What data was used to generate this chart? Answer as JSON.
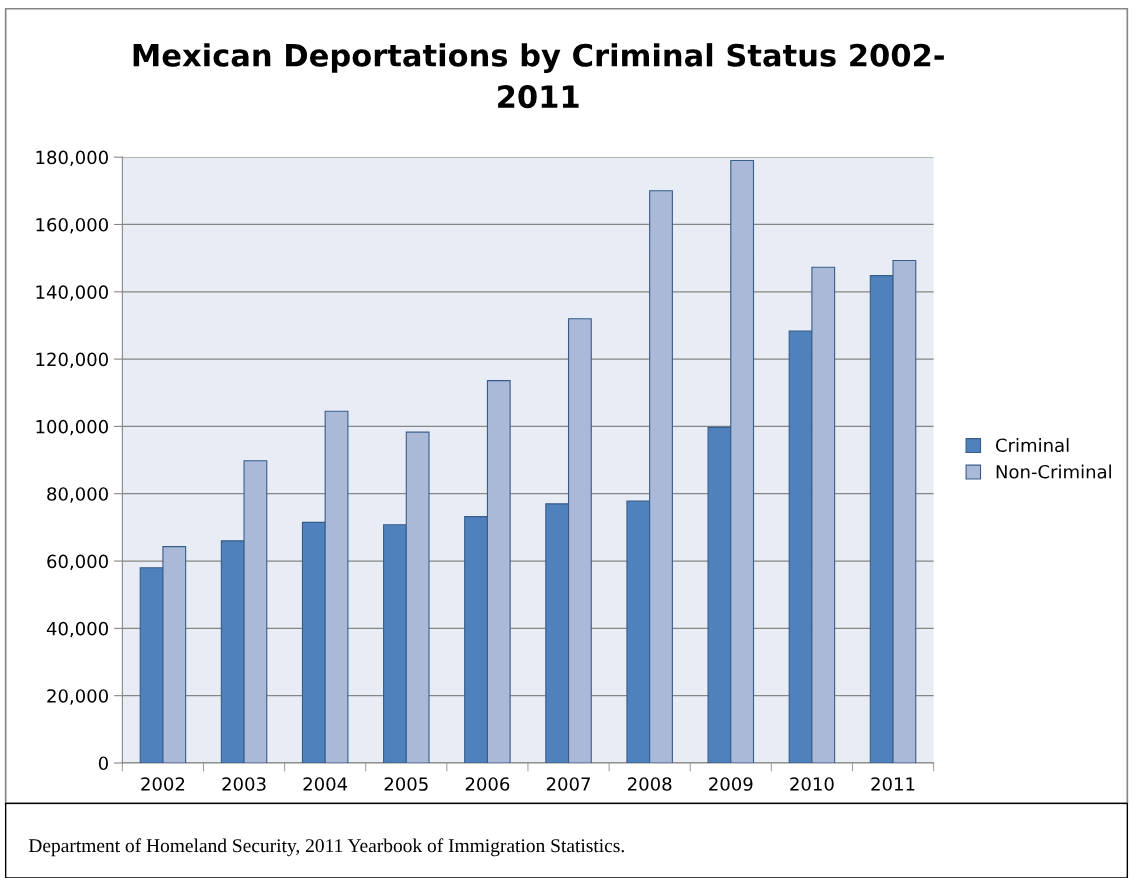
{
  "chart_data": {
    "type": "bar",
    "title": "Mexican Deportations by Criminal Status 2002-\n2011",
    "categories": [
      "2002",
      "2003",
      "2004",
      "2005",
      "2006",
      "2007",
      "2008",
      "2009",
      "2010",
      "2011"
    ],
    "series": [
      {
        "name": "Criminal",
        "color": "#4f81bd",
        "values": [
          58000,
          66000,
          71500,
          70800,
          73200,
          77000,
          77800,
          99700,
          128300,
          144800
        ]
      },
      {
        "name": "Non-Criminal",
        "color": "#aab9d8",
        "values": [
          64300,
          89800,
          104500,
          98300,
          113600,
          132000,
          170000,
          179000,
          147300,
          149300
        ]
      }
    ],
    "ylim": [
      0,
      180000
    ],
    "yticks": [
      {
        "value": 0,
        "label": "0"
      },
      {
        "value": 20000,
        "label": "20,000"
      },
      {
        "value": 40000,
        "label": "40,000"
      },
      {
        "value": 60000,
        "label": "60,000"
      },
      {
        "value": 80000,
        "label": "80,000"
      },
      {
        "value": 100000,
        "label": "100,000"
      },
      {
        "value": 120000,
        "label": "120,000"
      },
      {
        "value": 140000,
        "label": "140,000"
      },
      {
        "value": 160000,
        "label": "160,000"
      },
      {
        "value": 180000,
        "label": "180,000"
      }
    ],
    "grid": "y",
    "legend": "right",
    "annotations": [
      "Department of Homeland Security, 2011 Yearbook of Immigration Statistics."
    ]
  }
}
